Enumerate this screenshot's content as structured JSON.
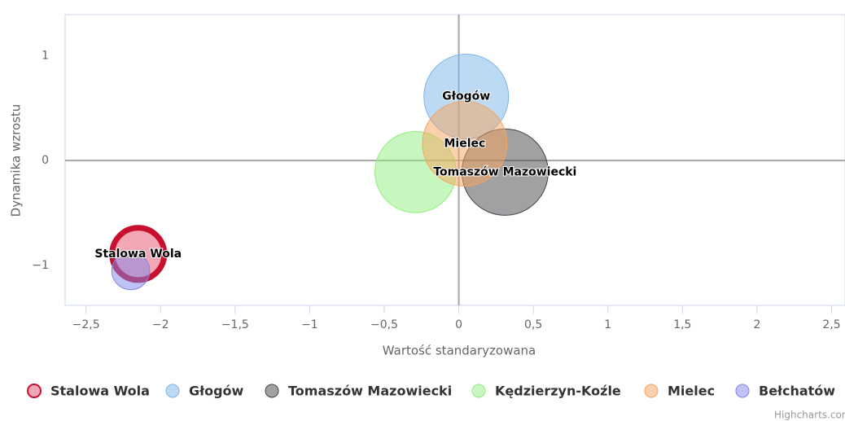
{
  "chart_data": {
    "type": "bubble",
    "xlabel": "Wartość standaryzowana",
    "ylabel": "Dynamika wzrostu",
    "xlim": [
      -2.64,
      2.59
    ],
    "ylim": [
      -1.38,
      1.39
    ],
    "xticks": [
      {
        "value": -2.5,
        "label": "−2,5"
      },
      {
        "value": -2,
        "label": "−2"
      },
      {
        "value": -1.5,
        "label": "−1,5"
      },
      {
        "value": -1,
        "label": "−1"
      },
      {
        "value": -0.5,
        "label": "−0,5"
      },
      0,
      {
        "value": 0.5,
        "label": "0,5"
      },
      1,
      {
        "value": 1.5,
        "label": "1,5"
      },
      2,
      {
        "value": 2.5,
        "label": "2,5"
      }
    ],
    "yticks": [
      {
        "value": -1,
        "label": "−1"
      },
      0,
      1
    ],
    "series": [
      {
        "name": "Stalowa Wola",
        "color": "#e8506a",
        "selected": true,
        "data_label": true,
        "x": [
          -2.15
        ],
        "values": [
          -0.89
        ],
        "sizes": [
          38
        ]
      },
      {
        "name": "Głogów",
        "color": "#7cb5ec",
        "data_label": true,
        "x": [
          0.05
        ],
        "values": [
          0.61
        ],
        "sizes": [
          100
        ]
      },
      {
        "name": "Tomaszów Mazowiecki",
        "color": "#434348",
        "data_label": true,
        "x": [
          0.31
        ],
        "values": [
          -0.11
        ],
        "sizes": [
          104
        ]
      },
      {
        "name": "Kędzierzyn-Koźle",
        "color": "#90ed7d",
        "data_label": false,
        "x": [
          -0.29
        ],
        "values": [
          -0.11
        ],
        "sizes": [
          92
        ]
      },
      {
        "name": "Mielec",
        "color": "#f7a35c",
        "data_label": true,
        "x": [
          0.04
        ],
        "values": [
          0.16
        ],
        "sizes": [
          100
        ]
      },
      {
        "name": "Bełchatów",
        "color": "#8085e9",
        "data_label": false,
        "x": [
          -2.2
        ],
        "values": [
          -1.05
        ],
        "sizes": [
          20
        ]
      }
    ],
    "credits": "Highcharts.com"
  }
}
